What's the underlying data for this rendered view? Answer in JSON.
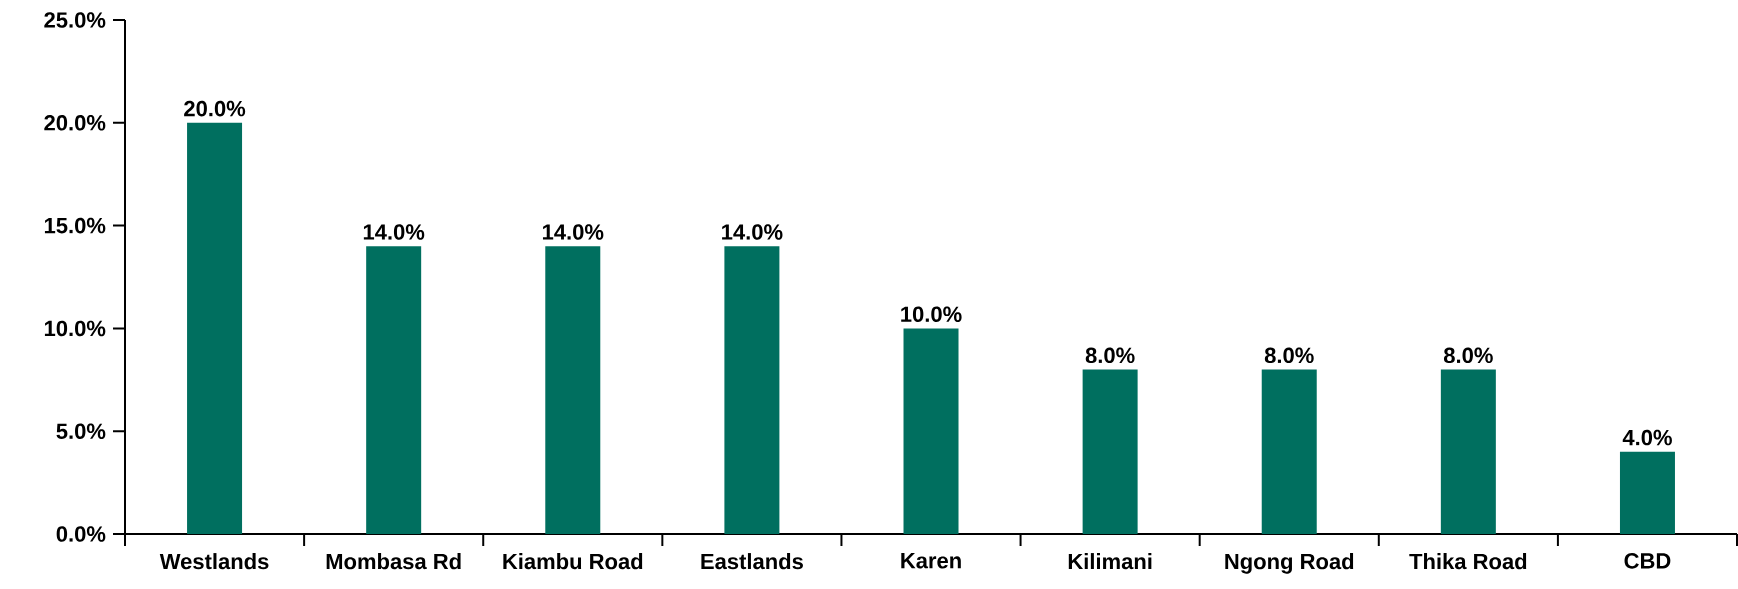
{
  "chart_data": {
    "type": "bar",
    "categories": [
      "Westlands",
      "Mombasa Rd",
      "Kiambu Road",
      "Eastlands",
      "Karen",
      "Kilimani",
      "Ngong Road",
      "Thika Road",
      "CBD"
    ],
    "values": [
      20,
      14,
      14,
      14,
      10,
      8,
      8,
      8,
      4
    ],
    "value_labels": [
      "20.0%",
      "14.0%",
      "14.0%",
      "14.0%",
      "10.0%",
      "8.0%",
      "8.0%",
      "8.0%",
      "4.0%"
    ],
    "color": "#006f5f",
    "ylim": [
      0,
      25
    ],
    "yticks": [
      {
        "value": 0,
        "label": "0.0%"
      },
      {
        "value": 5,
        "label": "5.0%"
      },
      {
        "value": 10,
        "label": "10.0%"
      },
      {
        "value": 15,
        "label": "15.0%"
      },
      {
        "value": 20,
        "label": "20.0%"
      },
      {
        "value": 25,
        "label": "25.0%"
      }
    ]
  }
}
